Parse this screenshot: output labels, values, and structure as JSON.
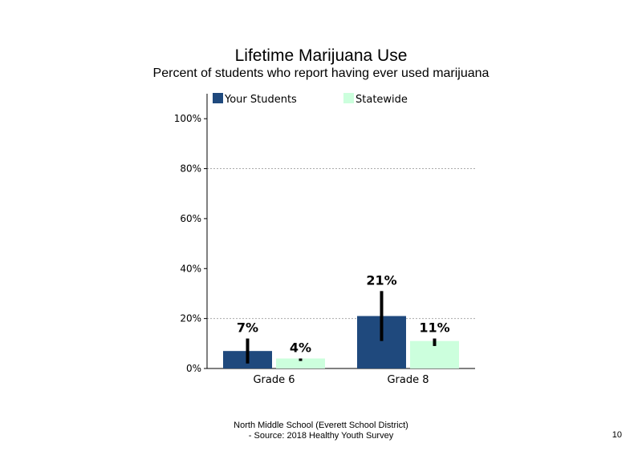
{
  "page_number": "10",
  "footer": {
    "line1": "North Middle School (Everett School District)",
    "line2": "- Source: 2018 Healthy  Youth Survey"
  },
  "colors": {
    "your_students": "#1f497d",
    "statewide": "#ccffdd",
    "error_bar": "#000000",
    "grid": "#aaaaaa"
  },
  "chart_data": {
    "type": "bar",
    "title": "Lifetime Marijuana  Use",
    "subtitle": "Percent of students who report having ever used marijuana",
    "categories": [
      "Grade 6",
      "Grade 8"
    ],
    "series": [
      {
        "name": "Your Students",
        "values": [
          7,
          21
        ],
        "labels": [
          "7%",
          "21%"
        ],
        "error_low": [
          2,
          11
        ],
        "error_high": [
          12,
          31
        ]
      },
      {
        "name": "Statewide",
        "values": [
          4,
          11
        ],
        "labels": [
          "4%",
          "11%"
        ],
        "error_low": [
          3,
          9
        ],
        "error_high": [
          4,
          12
        ]
      }
    ],
    "ylim": [
      0,
      110
    ],
    "yticks": [
      0,
      20,
      40,
      60,
      80,
      100
    ],
    "ytick_labels": [
      "0%",
      "20%",
      "40%",
      "60%",
      "80%",
      "100%"
    ],
    "gridlines_at": [
      20,
      80
    ],
    "grid": true,
    "legend_position": "top"
  }
}
